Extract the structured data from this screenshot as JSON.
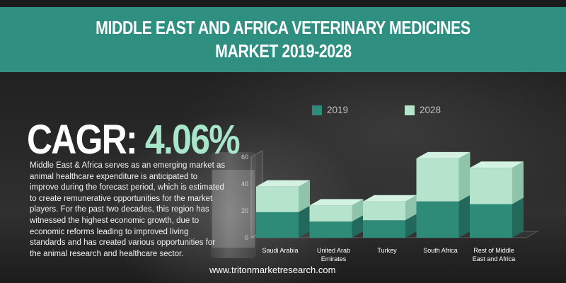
{
  "header": {
    "title_line1": "MIDDLE EAST AND AFRICA VETERINARY MEDICINES",
    "title_line2": "MARKET 2019-2028"
  },
  "cagr": {
    "label": "CAGR:",
    "value": "4.06%"
  },
  "description": "Middle East & Africa serves as an emerging market as animal healthcare expenditure is anticipated to improve during the forecast period, which is estimated to create remunerative opportunities for the market players. For the past two decades, this region has witnessed the highest economic growth, due to economic reforms leading to improved living standards and has created various opportunities for the animal research and healthcare sector.",
  "footer": {
    "url": "www.tritonmarketresearch.com"
  },
  "colors": {
    "banner": "#2f8f80",
    "accent": "#a8e6c9",
    "series_2019": "#2e8b78",
    "series_2028": "#b5e3cc"
  },
  "chart_data": {
    "type": "bar",
    "stacked": true,
    "categories": [
      "Saudi Arabia",
      "United Arab Emirates",
      "Turkey",
      "South Africa",
      "Rest of Middle East and Africa"
    ],
    "category_lines": [
      [
        "Saudi Arabia"
      ],
      [
        "United Arab",
        "Emirates"
      ],
      [
        "Turkey"
      ],
      [
        "South Africa"
      ],
      [
        "Rest of Middle",
        "East and Africa"
      ]
    ],
    "series": [
      {
        "name": "2019",
        "values": [
          19,
          12,
          13,
          27,
          25
        ]
      },
      {
        "name": "2028",
        "values": [
          19,
          12,
          14,
          32,
          27
        ]
      }
    ],
    "ylim": [
      0,
      60
    ],
    "yticks": [
      "0",
      "20",
      "40",
      "60"
    ],
    "legend_position": "top",
    "grid": false
  }
}
